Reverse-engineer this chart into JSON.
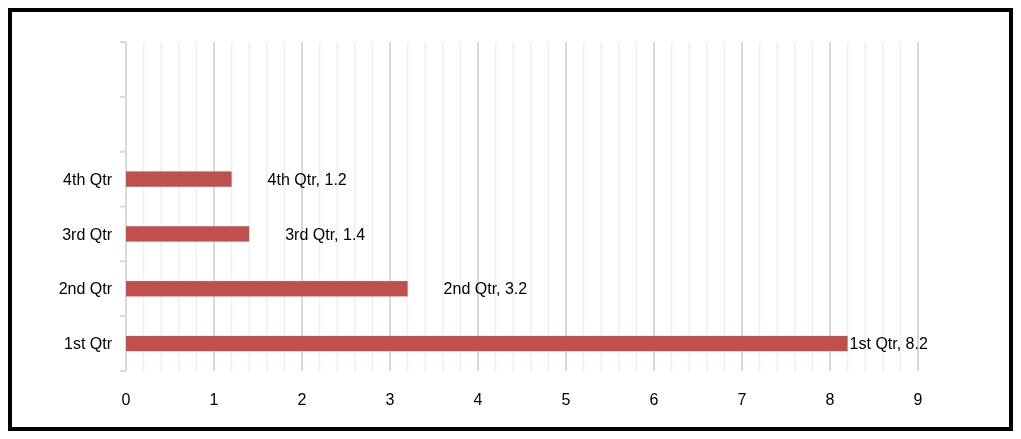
{
  "chart_data": {
    "type": "bar",
    "orientation": "horizontal",
    "categories": [
      null,
      null,
      "4th Qtr",
      "3rd Qtr",
      "2nd Qtr",
      "1st Qtr"
    ],
    "values": [
      null,
      null,
      1.2,
      1.4,
      3.2,
      8.2
    ],
    "value_labels": [
      null,
      null,
      "4th Qtr, 1.2",
      "3rd Qtr, 1.4",
      "2nd Qtr, 3.2",
      "1st Qtr, 8.2"
    ],
    "color": "#c0504d",
    "xlim": [
      0,
      9
    ],
    "xticks": [
      0,
      {
        "value": 0.2,
        "label": null
      },
      {
        "value": 0.4,
        "label": null
      },
      {
        "value": 0.6,
        "label": null
      },
      {
        "value": 0.8,
        "label": null
      },
      1,
      {
        "value": 1.2,
        "label": null
      },
      {
        "value": 1.4,
        "label": null
      },
      {
        "value": 1.6,
        "label": null
      },
      {
        "value": 1.8,
        "label": null
      },
      2,
      {
        "value": 2.2,
        "label": null
      },
      {
        "value": 2.4,
        "label": null
      },
      {
        "value": 2.6,
        "label": null
      },
      {
        "value": 2.8,
        "label": null
      },
      3,
      {
        "value": 3.2,
        "label": null
      },
      {
        "value": 3.4,
        "label": null
      },
      {
        "value": 3.6,
        "label": null
      },
      {
        "value": 3.8,
        "label": null
      },
      4,
      {
        "value": 4.2,
        "label": null
      },
      {
        "value": 4.4,
        "label": null
      },
      {
        "value": 4.6,
        "label": null
      },
      {
        "value": 4.8,
        "label": null
      },
      5,
      {
        "value": 5.2,
        "label": null
      },
      {
        "value": 5.4,
        "label": null
      },
      {
        "value": 5.6,
        "label": null
      },
      {
        "value": 5.8,
        "label": null
      },
      6,
      {
        "value": 6.2,
        "label": null
      },
      {
        "value": 6.4,
        "label": null
      },
      {
        "value": 6.6,
        "label": null
      },
      {
        "value": 6.8,
        "label": null
      },
      7,
      {
        "value": 7.2,
        "label": null
      },
      {
        "value": 7.4,
        "label": null
      },
      {
        "value": 7.6,
        "label": null
      },
      {
        "value": 7.8,
        "label": null
      },
      8,
      {
        "value": 8.2,
        "label": null
      },
      {
        "value": 8.4,
        "label": null
      },
      {
        "value": 8.6,
        "label": null
      },
      {
        "value": 8.8,
        "label": null
      },
      9
    ],
    "grid": "x"
  }
}
